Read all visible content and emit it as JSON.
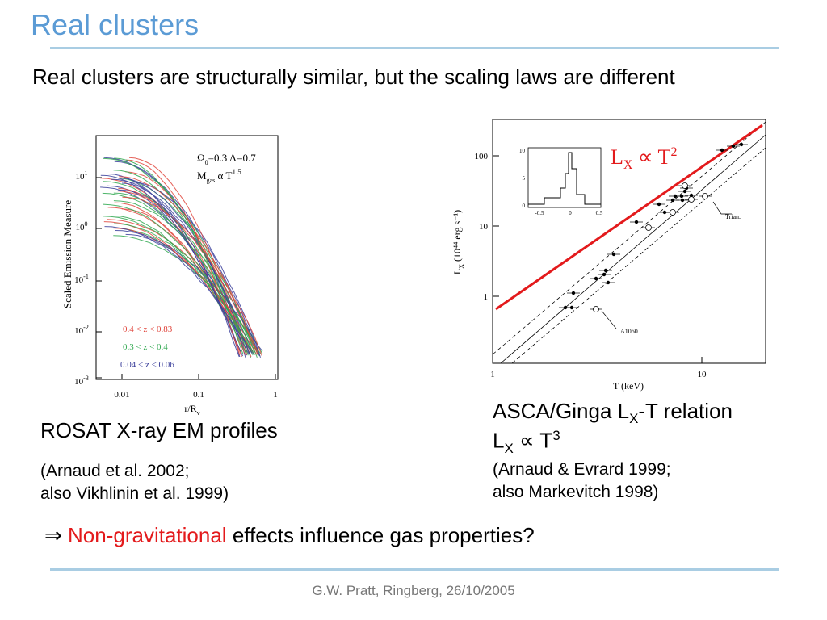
{
  "slide": {
    "title": "Real clusters",
    "intro": "Real clusters are structurally similar, but the scaling laws are different",
    "left": {
      "caption": "ROSAT X-ray EM profiles",
      "ref_line1": "(Arnaud et al. 2002;",
      "ref_line2": "also Vikhlinin et al. 1999)"
    },
    "right": {
      "caption_prefix": "ASCA/Ginga L",
      "caption_sub": "X",
      "caption_suffix": "-T relation",
      "relation_L": "L",
      "relation_sub": "X",
      "relation_prop": "∝ T",
      "relation_sup": "3",
      "ref_line1": "(Arnaud & Evrard 1999;",
      "ref_line2": "also Markevitch 1998)"
    },
    "conclusion_arrow": "⇒",
    "conclusion_red": "Non-gravitational",
    "conclusion_rest": " effects influence gas properties?",
    "footer": "G.W. Pratt, Ringberg, 26/10/2005"
  },
  "colors": {
    "title": "#5b9bd5",
    "rule": "#a9cde3",
    "highlight": "#e31a1c"
  },
  "figure_em": {
    "ylabel": "Scaled Emission Measure",
    "xlabel": "r/R",
    "xlabel_sub": "v",
    "xticks": [
      "0.01",
      "0.1",
      "1"
    ],
    "yticks": [
      {
        "base": "10",
        "exp": "1"
      },
      {
        "base": "10",
        "exp": "0"
      },
      {
        "base": "10",
        "exp": "-1"
      },
      {
        "base": "10",
        "exp": "-2"
      },
      {
        "base": "10",
        "exp": "-3"
      }
    ],
    "annotation_line1": "Ω",
    "annotation_line1_sub": "0",
    "annotation_line1_rest": "=0.3  Λ=0.7",
    "annotation_line2": "M",
    "annotation_line2_sub": "gas",
    "annotation_line2_rest": " α T",
    "annotation_line2_sup": "1.5",
    "legend": [
      {
        "label": "0.4 < z < 0.83",
        "color": "#e0453c"
      },
      {
        "label": "0.3 < z < 0.4",
        "color": "#2fa84f"
      },
      {
        "label": "0.04 < z < 0.06",
        "color": "#3b3f9b"
      }
    ]
  },
  "figure_lt": {
    "ylabel": "L",
    "ylabel_sub": "X",
    "ylabel_rest": " (10⁴⁴ erg s⁻¹)",
    "xlabel": "T (keV)",
    "xticks": [
      "1",
      "10"
    ],
    "yticks": [
      "100",
      "10",
      "1"
    ],
    "inset_yticks": [
      "10",
      "5",
      "0"
    ],
    "inset_xticks": [
      "-0.5",
      "0",
      "0.5"
    ],
    "labels": [
      "Trian.",
      "A1060"
    ],
    "overlay_L": "L",
    "overlay_sub": "X",
    "overlay_prop": " ∝ T",
    "overlay_sup": "2"
  }
}
